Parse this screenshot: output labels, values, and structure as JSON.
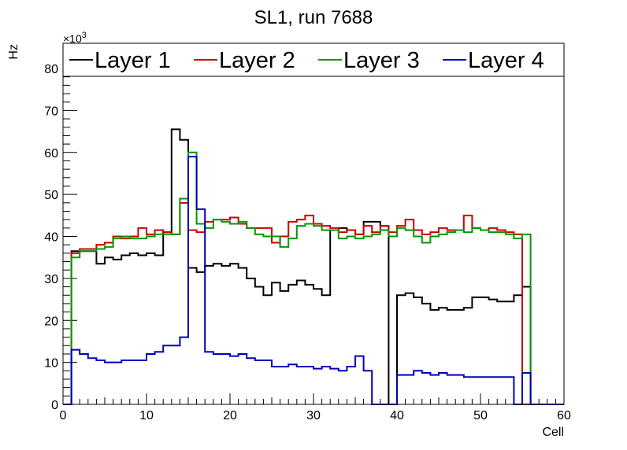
{
  "chart_data": {
    "type": "step",
    "title": "SL1, run 7688",
    "xlabel": "Cell",
    "ylabel": "Hz",
    "y_multiplier_base": "×10",
    "y_multiplier_exp": "3",
    "xlim": [
      0,
      60
    ],
    "ylim": [
      0,
      86
    ],
    "x_ticks": [
      0,
      10,
      20,
      30,
      40,
      50,
      60
    ],
    "y_ticks": [
      0,
      10,
      20,
      30,
      40,
      50,
      60,
      70,
      80
    ],
    "grid": false,
    "legend": "top",
    "bin_width": 1,
    "bin_start": 0,
    "series": [
      {
        "name": "Layer 1",
        "color": "#000000",
        "values": [
          0,
          36.5,
          36.5,
          36.5,
          33.5,
          35,
          34.5,
          35.5,
          36,
          35.5,
          36,
          35.5,
          41,
          65.5,
          63,
          32.5,
          31.5,
          33,
          33.5,
          33,
          33.5,
          32.5,
          30,
          28,
          26,
          29,
          27,
          28.5,
          29.5,
          28.5,
          27.5,
          26,
          41.5,
          42,
          41.5,
          40.5,
          43.5,
          43.5,
          42.5,
          0,
          26,
          26.5,
          25.5,
          24,
          22.5,
          23,
          22.5,
          22.5,
          23,
          25.5,
          25.5,
          25,
          24.5,
          24.5,
          26,
          28,
          0,
          0,
          0,
          0
        ]
      },
      {
        "name": "Layer 2",
        "color": "#cc0000",
        "values": [
          0,
          36,
          37,
          37,
          38,
          38.5,
          40,
          39.5,
          40,
          42,
          40.5,
          41.5,
          41,
          40.5,
          48,
          41.5,
          41,
          43.5,
          44,
          44,
          44.5,
          43,
          42,
          42,
          42,
          38.5,
          40,
          43.5,
          44,
          45,
          43,
          42.5,
          42,
          41,
          41.5,
          40.5,
          42.5,
          41,
          42.5,
          41,
          42.5,
          44,
          41.5,
          40.5,
          41,
          42,
          41.5,
          41.5,
          45,
          42,
          41.5,
          42,
          41.5,
          41,
          40.5,
          0,
          0,
          0,
          0,
          0
        ]
      },
      {
        "name": "Layer 3",
        "color": "#009900",
        "values": [
          0,
          35,
          36.5,
          36.5,
          37,
          37.5,
          39.5,
          40,
          39.5,
          39.5,
          40,
          40.5,
          40.5,
          40.5,
          49,
          60,
          43,
          42,
          44,
          43.5,
          43,
          43.5,
          42,
          40.5,
          40,
          40,
          37.5,
          39.5,
          42.5,
          43,
          42.5,
          41.5,
          41.5,
          39.5,
          40,
          39.5,
          40,
          40.5,
          41.5,
          40,
          42,
          41.5,
          40,
          38.5,
          40,
          40.5,
          41,
          41.5,
          41,
          42,
          41.5,
          41,
          41,
          40.5,
          39.5,
          40.5,
          0,
          0,
          0,
          0
        ]
      },
      {
        "name": "Layer 4",
        "color": "#0000bb",
        "values": [
          0,
          13,
          12,
          11,
          10.5,
          10,
          10,
          10.5,
          10.5,
          10.5,
          12,
          12.5,
          14,
          14,
          16,
          59,
          46.5,
          12.5,
          12,
          12,
          11.5,
          12,
          11,
          10.5,
          10.5,
          9,
          9,
          9.5,
          9,
          9,
          8.5,
          9,
          8.5,
          8,
          9,
          11.5,
          8,
          0,
          0,
          0,
          7,
          7,
          8,
          7.5,
          7,
          7.5,
          7,
          7,
          6.5,
          6.5,
          6.5,
          6.5,
          6.5,
          6.5,
          0,
          7.5,
          0,
          0,
          0,
          0
        ]
      }
    ]
  }
}
